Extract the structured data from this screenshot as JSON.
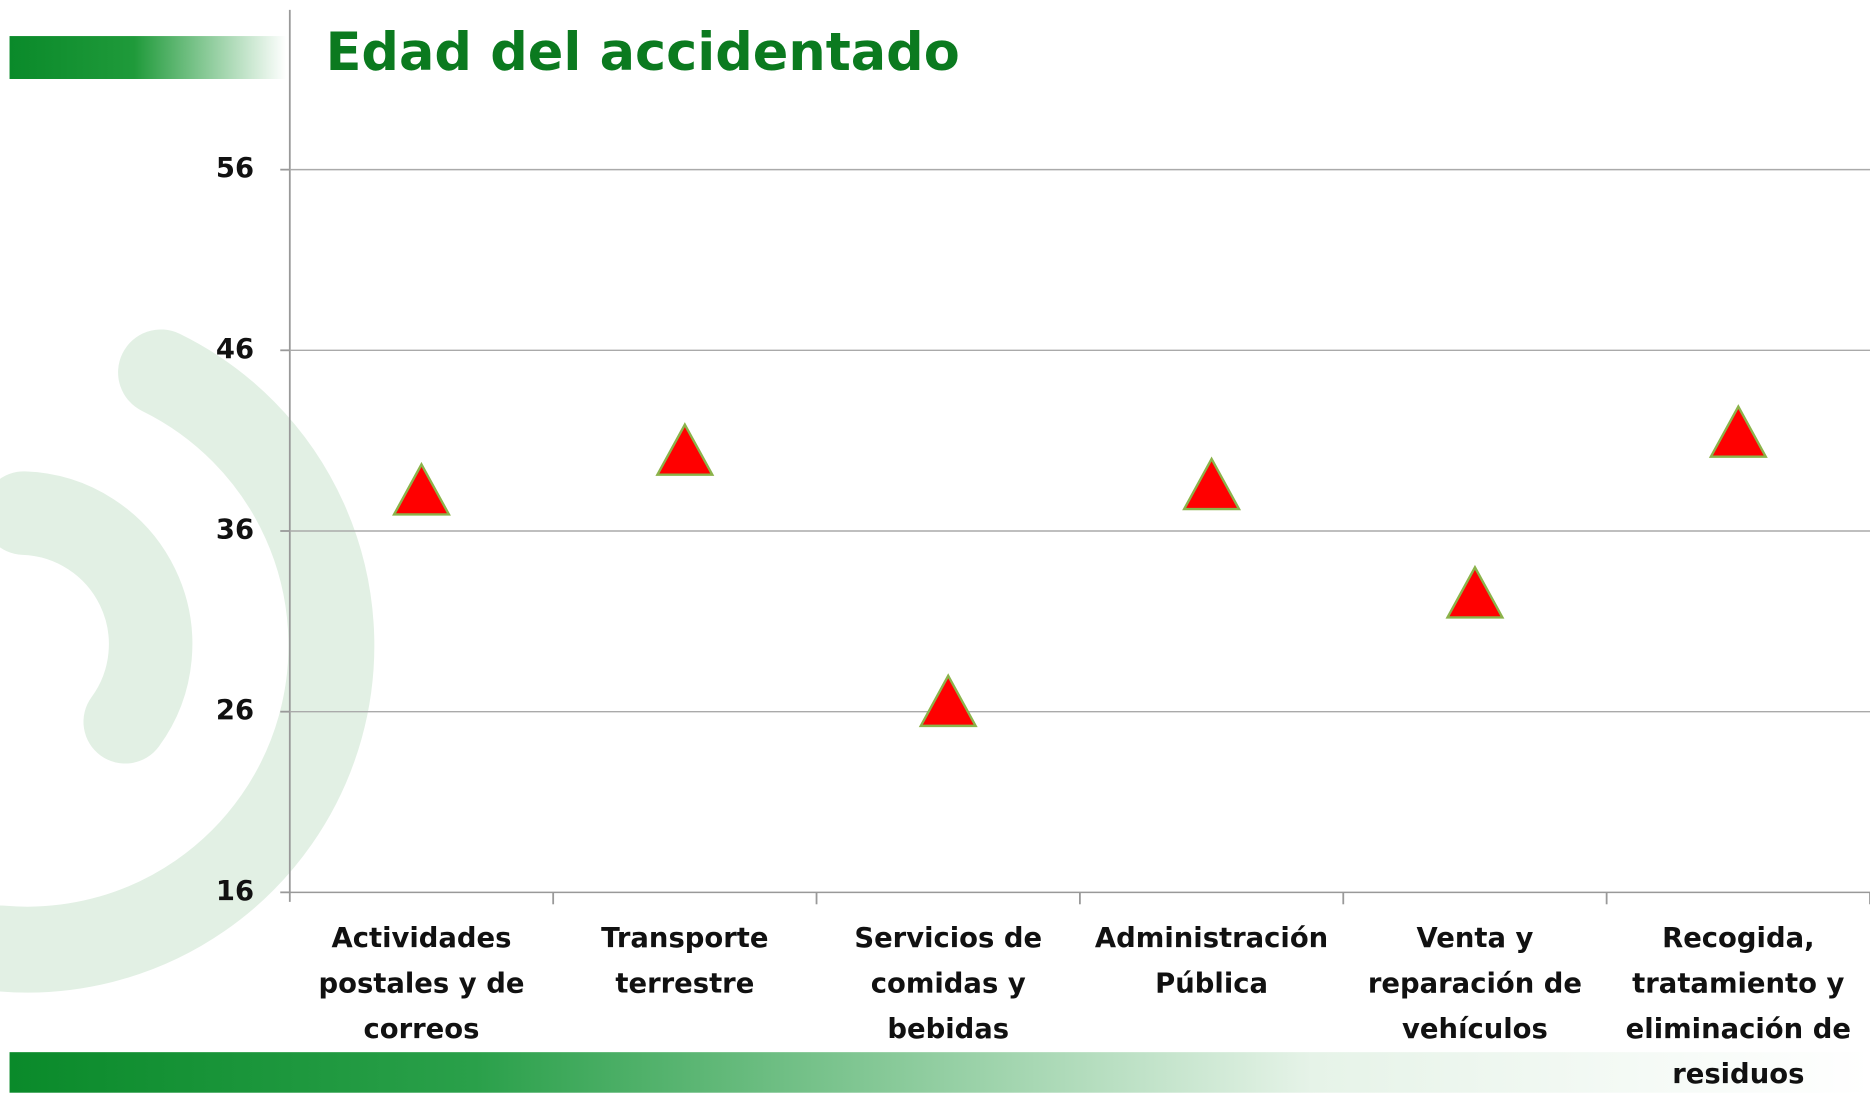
{
  "chart_data": {
    "type": "scatter",
    "title": "Edad del accidentado",
    "categories": [
      "Actividades postales y de correos",
      "Transporte terrestre",
      "Servicios de comidas y bebidas",
      "Administración Pública",
      "Venta y reparación de vehículos",
      "Recogida, tratamiento y eliminación de residuos"
    ],
    "values": [
      38.3,
      40.5,
      26.6,
      38.6,
      32.6,
      41.5
    ],
    "color": "#ff0000",
    "ylim": [
      16,
      56
    ],
    "yticks": [
      16,
      26,
      36,
      46,
      56
    ],
    "grid": true
  }
}
